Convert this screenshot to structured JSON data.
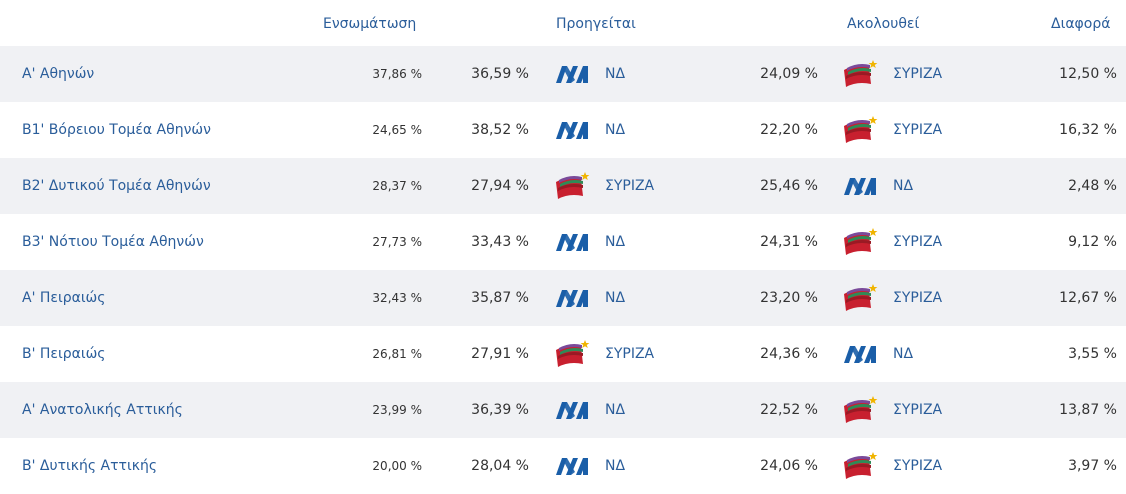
{
  "header": {
    "turnout": "Ενσωμάτωση",
    "leading": "Προηγείται",
    "following": "Ακολουθεί",
    "difference": "Διαφορά"
  },
  "parties": {
    "nd": {
      "name": "ΝΔ",
      "icon": "nd-logo-icon",
      "color": "#1a5ea8"
    },
    "syriza": {
      "name": "ΣΥΡΙΖΑ",
      "icon": "syriza-logo-icon",
      "color": "#c8202f"
    }
  },
  "rows": [
    {
      "district": "Α' Αθηνών",
      "turnout": "37,86 %",
      "lead_pct": "36,59 %",
      "lead_party": "ΝΔ",
      "follow_pct": "24,09 %",
      "follow_party": "ΣΥΡΙΖΑ",
      "diff": "12,50 %"
    },
    {
      "district": "Β1' Βόρειου Τομέα Αθηνών",
      "turnout": "24,65 %",
      "lead_pct": "38,52 %",
      "lead_party": "ΝΔ",
      "follow_pct": "22,20 %",
      "follow_party": "ΣΥΡΙΖΑ",
      "diff": "16,32 %"
    },
    {
      "district": "Β2' Δυτικού Τομέα Αθηνών",
      "turnout": "28,37 %",
      "lead_pct": "27,94 %",
      "lead_party": "ΣΥΡΙΖΑ",
      "follow_pct": "25,46 %",
      "follow_party": "ΝΔ",
      "diff": "2,48 %"
    },
    {
      "district": "Β3' Νότιου Τομέα Αθηνών",
      "turnout": "27,73 %",
      "lead_pct": "33,43 %",
      "lead_party": "ΝΔ",
      "follow_pct": "24,31 %",
      "follow_party": "ΣΥΡΙΖΑ",
      "diff": "9,12 %"
    },
    {
      "district": "Α' Πειραιώς",
      "turnout": "32,43 %",
      "lead_pct": "35,87 %",
      "lead_party": "ΝΔ",
      "follow_pct": "23,20 %",
      "follow_party": "ΣΥΡΙΖΑ",
      "diff": "12,67 %"
    },
    {
      "district": "Β' Πειραιώς",
      "turnout": "26,81 %",
      "lead_pct": "27,91 %",
      "lead_party": "ΣΥΡΙΖΑ",
      "follow_pct": "24,36 %",
      "follow_party": "ΝΔ",
      "diff": "3,55 %"
    },
    {
      "district": "Α' Ανατολικής Αττικής",
      "turnout": "23,99 %",
      "lead_pct": "36,39 %",
      "lead_party": "ΝΔ",
      "follow_pct": "22,52 %",
      "follow_party": "ΣΥΡΙΖΑ",
      "diff": "13,87 %"
    },
    {
      "district": "Β' Δυτικής Αττικής",
      "turnout": "20,00 %",
      "lead_pct": "28,04 %",
      "lead_party": "ΝΔ",
      "follow_pct": "24,06 %",
      "follow_party": "ΣΥΡΙΖΑ",
      "diff": "3,97 %"
    }
  ]
}
